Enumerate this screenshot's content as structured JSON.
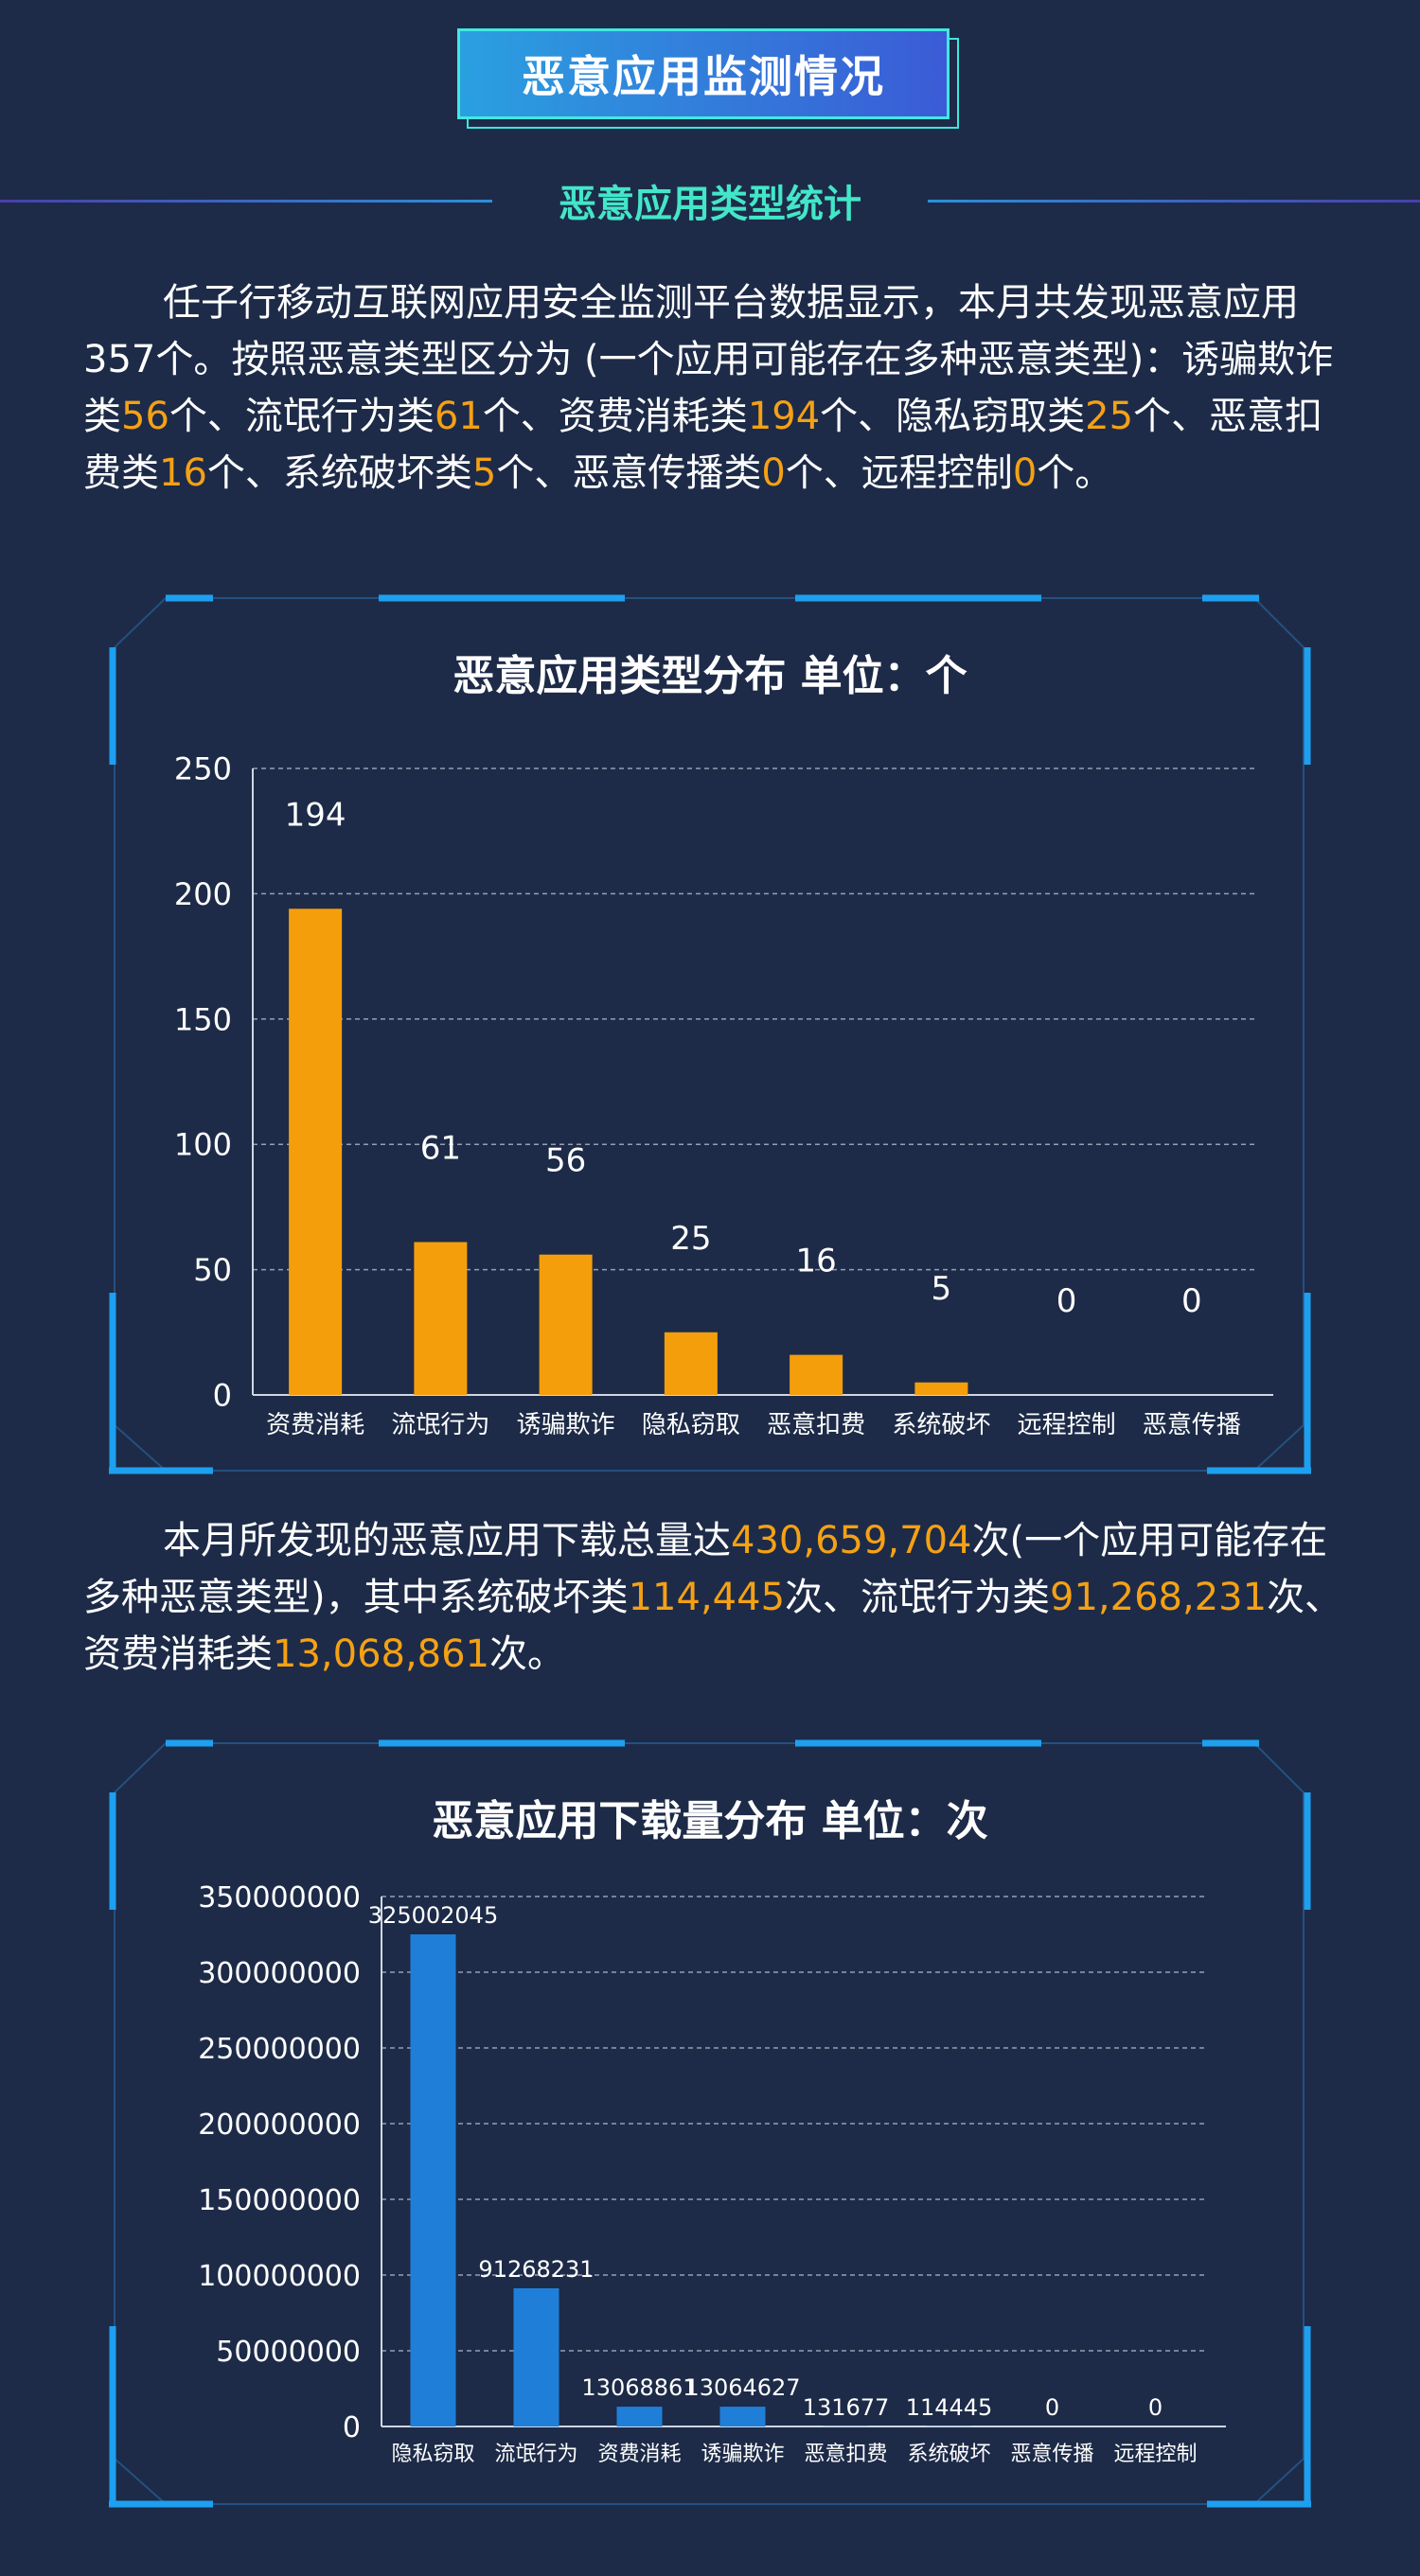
{
  "header": {
    "title": "恶意应用监测情况"
  },
  "section": {
    "subtitle": "恶意应用类型统计"
  },
  "para1": {
    "segments": [
      {
        "t": "任子行移动互联网应用安全监测平台数据显示，本月共发现恶意应用357个。按照恶意类型区分为 (一个应用可能存在多种恶意类型)：诱骗欺诈类",
        "h": false
      },
      {
        "t": "56",
        "h": true
      },
      {
        "t": "个、流氓行为类",
        "h": false
      },
      {
        "t": "61",
        "h": true
      },
      {
        "t": "个、资费消耗类",
        "h": false
      },
      {
        "t": "194",
        "h": true
      },
      {
        "t": "个、隐私窃取类",
        "h": false
      },
      {
        "t": "25",
        "h": true
      },
      {
        "t": "个、恶意扣费类",
        "h": false
      },
      {
        "t": "16",
        "h": true
      },
      {
        "t": "个、系统破坏类",
        "h": false
      },
      {
        "t": "5",
        "h": true
      },
      {
        "t": "个、恶意传播类",
        "h": false
      },
      {
        "t": "0",
        "h": true
      },
      {
        "t": "个、远程控制",
        "h": false
      },
      {
        "t": "0",
        "h": true
      },
      {
        "t": "个。",
        "h": false
      }
    ]
  },
  "para2": {
    "segments": [
      {
        "t": "本月所发现的恶意应用下载总量达",
        "h": false
      },
      {
        "t": "430,659,704",
        "h": true
      },
      {
        "t": "次(一个应用可能存在多种恶意类型)，其中系统破坏类",
        "h": false
      },
      {
        "t": "114,445",
        "h": true
      },
      {
        "t": "次、流氓行为类",
        "h": false
      },
      {
        "t": "91,268,231",
        "h": true
      },
      {
        "t": "次、资费消耗类",
        "h": false
      },
      {
        "t": "13,068,861",
        "h": true
      },
      {
        "t": "次。",
        "h": false
      }
    ]
  },
  "colors": {
    "background": "#1d2b48",
    "accent_orange": "#f5a114",
    "bar_blue": "#1f7fd8",
    "frame_cyan": "#1ea0f0",
    "subtitle_green": "#43e6c8"
  },
  "chart_data": [
    {
      "type": "bar",
      "title": "恶意应用类型分布   单位：个",
      "categories": [
        "资费消耗",
        "流氓行为",
        "诱骗欺诈",
        "隐私窃取",
        "恶意扣费",
        "系统破坏",
        "远程控制",
        "恶意传播"
      ],
      "values": [
        194,
        61,
        56,
        25,
        16,
        5,
        0,
        0
      ],
      "data_labels": [
        "194",
        "61",
        "56",
        "25",
        "16",
        "5",
        "0",
        "0"
      ],
      "ylim": [
        0,
        250
      ],
      "yticks": [
        0,
        50,
        100,
        150,
        200,
        250
      ],
      "grid": true,
      "bar_color": "#f59e0b"
    },
    {
      "type": "bar",
      "title": "恶意应用下载量分布   单位：次",
      "categories": [
        "隐私窃取",
        "流氓行为",
        "资费消耗",
        "诱骗欺诈",
        "恶意扣费",
        "系统破坏",
        "恶意传播",
        "远程控制"
      ],
      "values": [
        325002045,
        91268231,
        13068861,
        13064627,
        131677,
        114445,
        0,
        0
      ],
      "data_labels": [
        "325002045",
        "91268231",
        "13068861",
        "13064627",
        "131677",
        "114445",
        "0",
        "0"
      ],
      "ylim": [
        0,
        350000000
      ],
      "yticks": [
        0,
        50000000,
        100000000,
        150000000,
        200000000,
        250000000,
        300000000,
        350000000
      ],
      "grid": true,
      "bar_color": "#1f7fd8"
    }
  ]
}
